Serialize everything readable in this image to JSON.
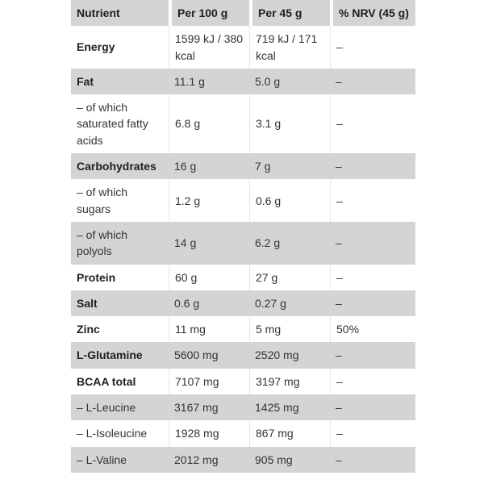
{
  "colors": {
    "page_bg": "#ffffff",
    "shade": "#d4d4d4",
    "header_gap": "#ffffff",
    "divider": "#e6e6e6",
    "text": "#333333",
    "text_bold": "#1f1f1f"
  },
  "table": {
    "headers": [
      "Nutrient",
      "Per 100 g",
      "Per 45 g",
      "% NRV (45 g)"
    ],
    "rows": [
      {
        "nutrient": "Energy",
        "per100": "1599 kJ / 380 kcal",
        "per45": "719 kJ / 171 kcal",
        "nrv": "–",
        "bold": true,
        "shade": "white"
      },
      {
        "nutrient": "Fat",
        "per100": "11.1 g",
        "per45": "5.0 g",
        "nrv": "–",
        "bold": true,
        "shade": "gray"
      },
      {
        "nutrient": "– of which saturated fatty acids",
        "per100": "6.8 g",
        "per45": "3.1 g",
        "nrv": "–",
        "bold": false,
        "shade": "white"
      },
      {
        "nutrient": "Carbohydrates",
        "per100": "16 g",
        "per45": "7 g",
        "nrv": "–",
        "bold": true,
        "shade": "gray"
      },
      {
        "nutrient": "– of which sugars",
        "per100": "1.2 g",
        "per45": "0.6 g",
        "nrv": "–",
        "bold": false,
        "shade": "white"
      },
      {
        "nutrient": "– of which polyols",
        "per100": "14 g",
        "per45": "6.2 g",
        "nrv": "–",
        "bold": false,
        "shade": "gray"
      },
      {
        "nutrient": "Protein",
        "per100": "60 g",
        "per45": "27 g",
        "nrv": "–",
        "bold": true,
        "shade": "white"
      },
      {
        "nutrient": "Salt",
        "per100": "0.6 g",
        "per45": "0.27 g",
        "nrv": "–",
        "bold": true,
        "shade": "gray"
      },
      {
        "nutrient": "Zinc",
        "per100": "11 mg",
        "per45": "5 mg",
        "nrv": "50%",
        "bold": true,
        "shade": "white"
      },
      {
        "nutrient": "L-Glutamine",
        "per100": "5600 mg",
        "per45": "2520 mg",
        "nrv": "–",
        "bold": true,
        "shade": "gray"
      },
      {
        "nutrient": "BCAA total",
        "per100": "7107 mg",
        "per45": "3197 mg",
        "nrv": "–",
        "bold": true,
        "shade": "white"
      },
      {
        "nutrient": "– L-Leucine",
        "per100": "3167 mg",
        "per45": "1425 mg",
        "nrv": "–",
        "bold": false,
        "shade": "gray"
      },
      {
        "nutrient": "– L-Isoleucine",
        "per100": "1928 mg",
        "per45": "867 mg",
        "nrv": "–",
        "bold": false,
        "shade": "white"
      },
      {
        "nutrient": "– L-Valine",
        "per100": "2012 mg",
        "per45": "905 mg",
        "nrv": "–",
        "bold": false,
        "shade": "gray"
      }
    ]
  }
}
